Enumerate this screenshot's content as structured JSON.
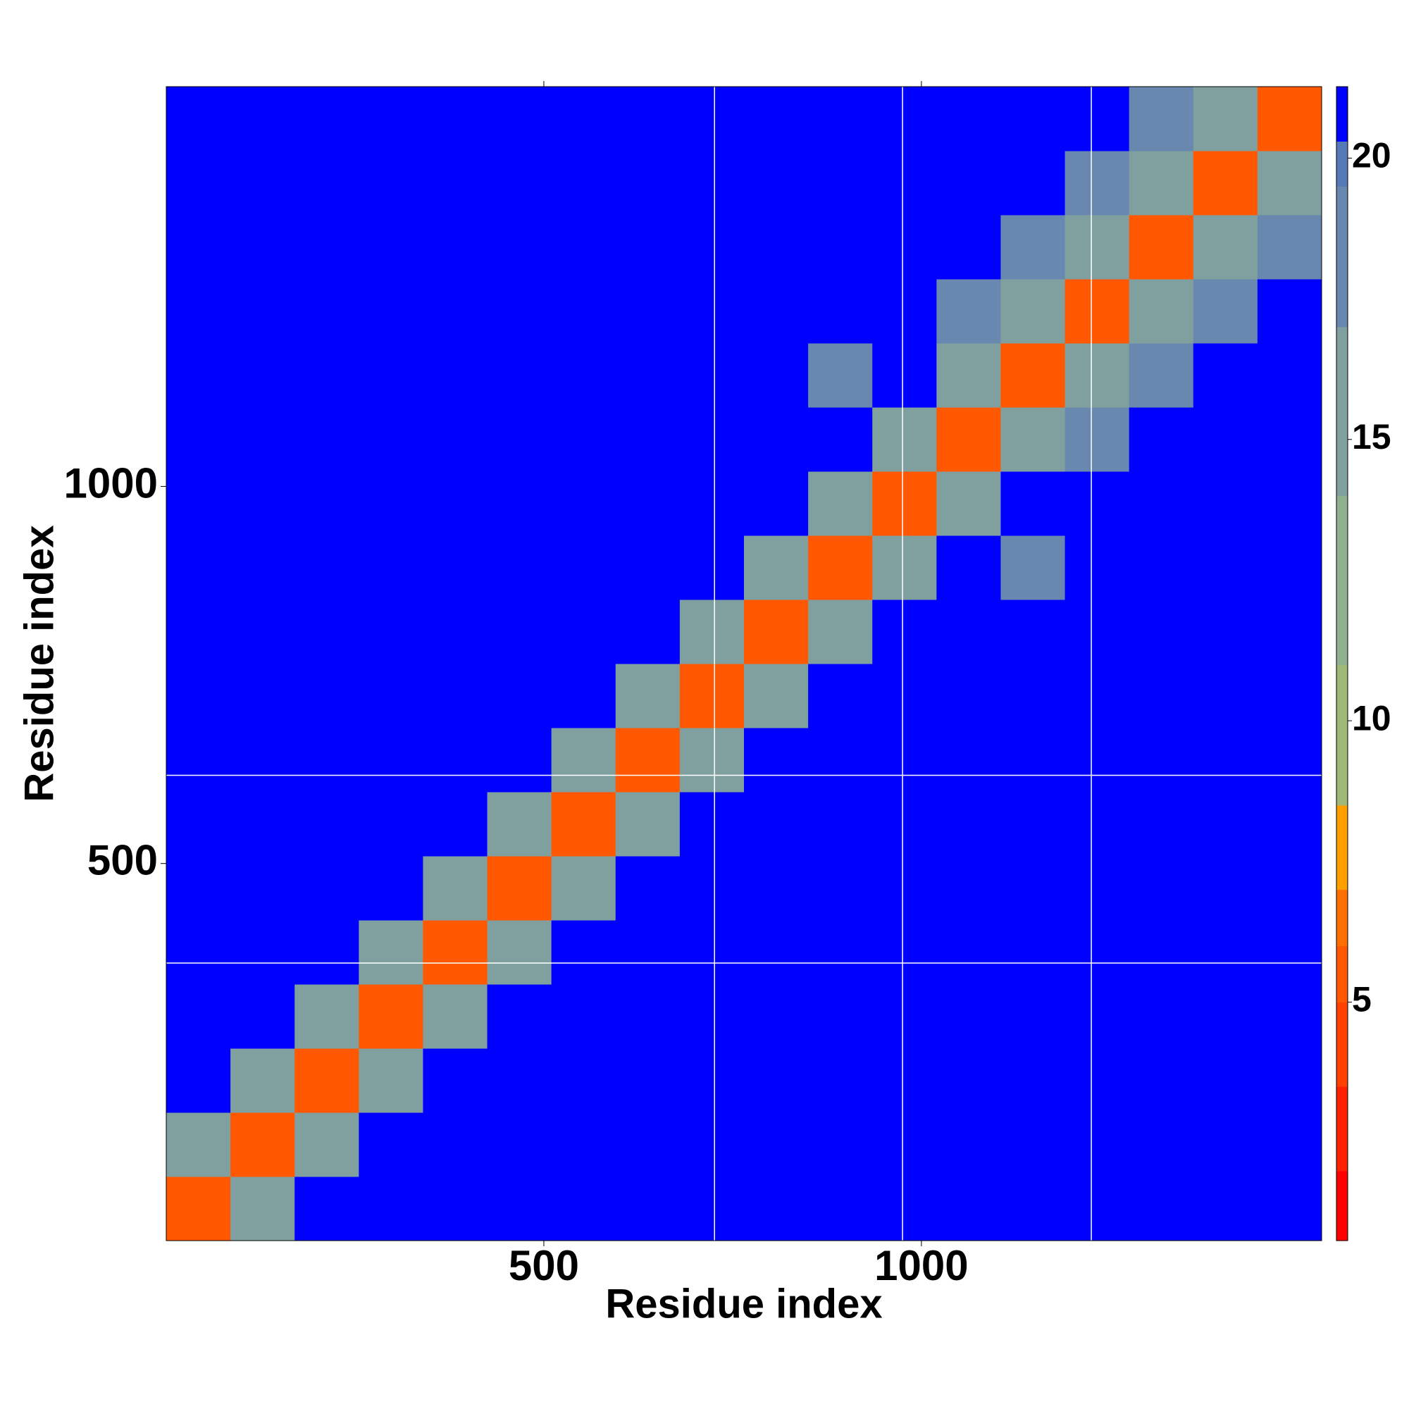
{
  "chart_data": {
    "type": "heatmap",
    "xlabel": "Residue index",
    "ylabel": "Residue index",
    "xlim": [
      0,
      1530
    ],
    "ylim": [
      0,
      1530
    ],
    "xticks": [
      500,
      1000
    ],
    "yticks": [
      500,
      1000
    ],
    "x_lines": [
      726,
      975,
      1225
    ],
    "y_lines": [
      368,
      617
    ],
    "xbins": [
      0,
      85,
      170,
      255,
      340,
      425,
      510,
      595,
      680,
      765,
      850,
      935,
      1020,
      1105,
      1190,
      1275,
      1360,
      1445,
      1530
    ],
    "ybins": [
      0,
      85,
      170,
      255,
      340,
      425,
      510,
      595,
      680,
      765,
      850,
      935,
      1020,
      1105,
      1190,
      1275,
      1360,
      1445,
      1530
    ],
    "values": [
      [
        6,
        17,
        22,
        22,
        22,
        22,
        22,
        22,
        22,
        22,
        22,
        22,
        22,
        22,
        22,
        22,
        22,
        22
      ],
      [
        17,
        6,
        17,
        22,
        22,
        22,
        22,
        22,
        22,
        22,
        22,
        22,
        22,
        22,
        22,
        22,
        22,
        22
      ],
      [
        22,
        17,
        6,
        17,
        22,
        22,
        22,
        22,
        22,
        22,
        22,
        22,
        22,
        22,
        22,
        22,
        22,
        22
      ],
      [
        22,
        22,
        17,
        6,
        17,
        22,
        22,
        22,
        22,
        22,
        22,
        22,
        22,
        22,
        22,
        22,
        22,
        22
      ],
      [
        22,
        22,
        22,
        17,
        6,
        17,
        22,
        22,
        22,
        22,
        22,
        22,
        22,
        22,
        22,
        22,
        22,
        22
      ],
      [
        22,
        22,
        22,
        22,
        17,
        6,
        17,
        22,
        22,
        22,
        22,
        22,
        22,
        22,
        22,
        22,
        22,
        22
      ],
      [
        22,
        22,
        22,
        22,
        22,
        17,
        6,
        17,
        22,
        22,
        22,
        22,
        22,
        22,
        22,
        22,
        22,
        22
      ],
      [
        22,
        22,
        22,
        22,
        22,
        22,
        17,
        6,
        17,
        22,
        22,
        22,
        22,
        22,
        22,
        22,
        22,
        22
      ],
      [
        22,
        22,
        22,
        22,
        22,
        22,
        22,
        17,
        6,
        17,
        22,
        22,
        22,
        22,
        22,
        22,
        22,
        22
      ],
      [
        22,
        22,
        22,
        22,
        22,
        22,
        22,
        22,
        17,
        6,
        17,
        22,
        22,
        22,
        22,
        22,
        22,
        22
      ],
      [
        22,
        22,
        22,
        22,
        22,
        22,
        22,
        22,
        22,
        17,
        6,
        17,
        22,
        18,
        22,
        22,
        22,
        22
      ],
      [
        22,
        22,
        22,
        22,
        22,
        22,
        22,
        22,
        22,
        22,
        17,
        6,
        17,
        22,
        22,
        22,
        22,
        22
      ],
      [
        22,
        22,
        22,
        22,
        22,
        22,
        22,
        22,
        22,
        22,
        22,
        17,
        6,
        17,
        19,
        22,
        22,
        22
      ],
      [
        22,
        22,
        22,
        22,
        22,
        22,
        22,
        22,
        22,
        22,
        18,
        22,
        17,
        6,
        17,
        19,
        22,
        22
      ],
      [
        22,
        22,
        22,
        22,
        22,
        22,
        22,
        22,
        22,
        22,
        22,
        22,
        19,
        17,
        6,
        17,
        19,
        22
      ],
      [
        22,
        22,
        22,
        22,
        22,
        22,
        22,
        22,
        22,
        22,
        22,
        22,
        22,
        19,
        17,
        6,
        17,
        19
      ],
      [
        22,
        22,
        22,
        22,
        22,
        22,
        22,
        22,
        22,
        22,
        22,
        22,
        22,
        22,
        19,
        17,
        6,
        17
      ],
      [
        22,
        22,
        22,
        22,
        22,
        22,
        22,
        22,
        22,
        22,
        22,
        22,
        22,
        22,
        22,
        19,
        17,
        6
      ]
    ],
    "color_bounds": [
      0.76,
      2,
      3.5,
      5,
      6,
      7,
      8.5,
      11,
      14,
      17,
      19.5,
      20.3,
      21.27
    ],
    "colors": [
      "#ff0000",
      "#ff2000",
      "#ff4000",
      "#ff5800",
      "#ff7000",
      "#ffa000",
      "#a0b878",
      "#90b090",
      "#80a0a0",
      "#6888b0",
      "#5878b8",
      "#0000ff"
    ],
    "cticks": [
      5,
      10,
      15,
      20
    ]
  }
}
